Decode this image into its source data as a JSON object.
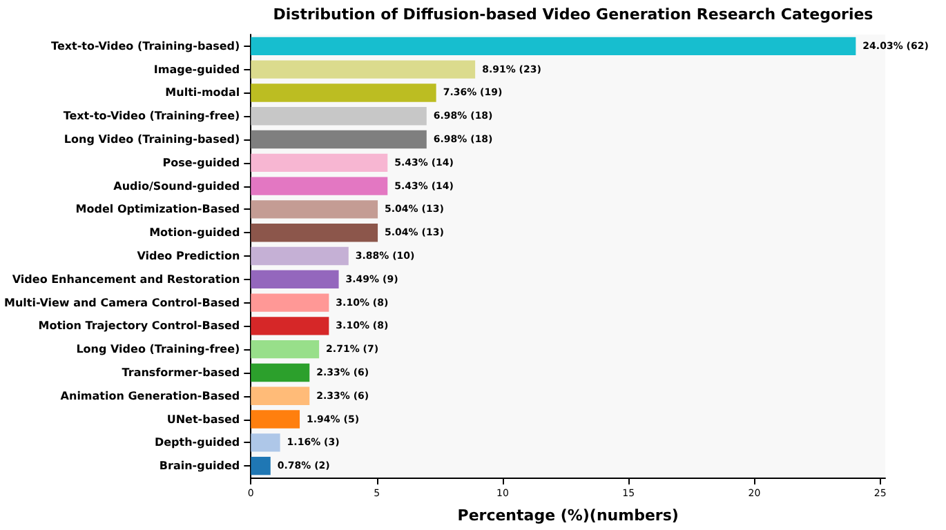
{
  "chart_data": {
    "type": "bar",
    "orientation": "horizontal",
    "title": "Distribution of Diffusion-based Video Generation Research Categories",
    "xlabel": "Percentage (%)(numbers)",
    "categories": [
      "Text-to-Video (Training-based)",
      "Image-guided",
      "Multi-modal",
      "Text-to-Video (Training-free)",
      "Long Video (Training-based)",
      "Pose-guided",
      "Audio/Sound-guided",
      "Model Optimization-Based",
      "Motion-guided",
      "Video Prediction",
      "Video Enhancement and Restoration",
      "Multi-View and Camera Control-Based",
      "Motion Trajectory Control-Based",
      "Long Video (Training-free)",
      "Transformer-based",
      "Animation Generation-Based",
      "UNet-based",
      "Depth-guided",
      "Brain-guided"
    ],
    "values": [
      24.03,
      8.91,
      7.36,
      6.98,
      6.98,
      5.43,
      5.43,
      5.04,
      5.04,
      3.88,
      3.49,
      3.1,
      3.1,
      2.71,
      2.33,
      2.33,
      1.94,
      1.16,
      0.78
    ],
    "value_labels": [
      "24.03% (62)",
      "8.91% (23)",
      "7.36% (19)",
      "6.98% (18)",
      "6.98% (18)",
      "5.43% (14)",
      "5.43% (14)",
      "5.04% (13)",
      "5.04% (13)",
      "3.88% (10)",
      "3.49% (9)",
      "3.10% (8)",
      "3.10% (8)",
      "2.71% (7)",
      "2.33% (6)",
      "2.33% (6)",
      "1.94% (5)",
      "1.16% (3)",
      "0.78% (2)"
    ],
    "colors": [
      "#17becf",
      "#dbdb8d",
      "#bcbd22",
      "#c7c7c7",
      "#7f7f7f",
      "#f7b6d2",
      "#e377c2",
      "#c49c94",
      "#8c564b",
      "#c5b0d5",
      "#9467bd",
      "#ff9896",
      "#d62728",
      "#98df8a",
      "#2ca02c",
      "#ffbb78",
      "#ff7f0e",
      "#aec7e8",
      "#1f77b4"
    ],
    "xlim": [
      0,
      25.2
    ],
    "xticks": [
      0,
      5,
      10,
      15,
      20,
      25
    ],
    "grid": false
  }
}
